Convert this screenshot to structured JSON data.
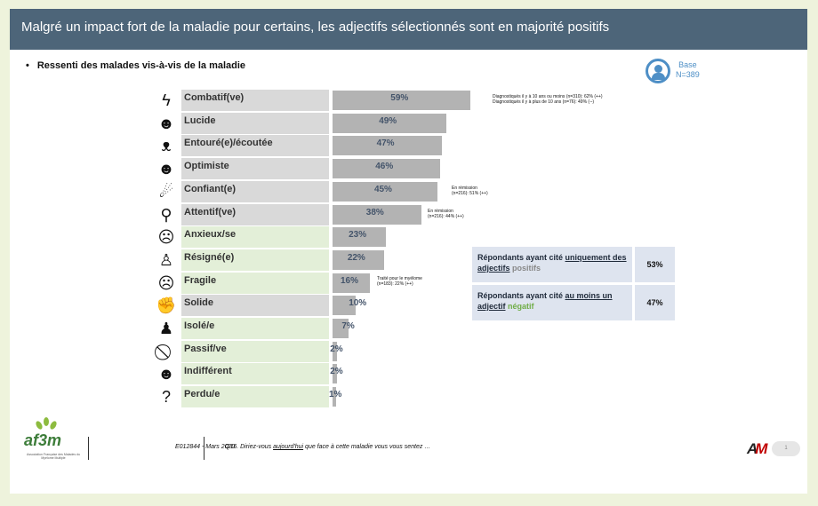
{
  "header": {
    "title": "Malgré un impact fort de la maladie pour certains, les adjectifs sélectionnés sont en majorité positifs"
  },
  "bullet": {
    "marker": "•",
    "text": "Ressenti des malades vis-à-vis de la maladie"
  },
  "base": {
    "line1": "Base",
    "line2": "N=389",
    "icon": "group-icon"
  },
  "colors": {
    "header_bg": "#4d6579",
    "bar": "#b3b3b3",
    "label_positive": "#d9d9d9",
    "label_negative": "#e3efd8",
    "pct_text": "#44546a",
    "summary_bg": "#dee4ef",
    "negative_word": "#70ad47"
  },
  "adjectives": [
    {
      "label": "Combatif(ve)",
      "pct": 59,
      "pct_text": "59%",
      "tone": "positive",
      "icon": "lightning-icon",
      "glyph": "ϟ"
    },
    {
      "label": "Lucide",
      "pct": 49,
      "pct_text": "49%",
      "tone": "positive",
      "icon": "head-gears-icon",
      "glyph": "☻"
    },
    {
      "label": "Entouré(e)/écoutée",
      "pct": 47,
      "pct_text": "47%",
      "tone": "positive",
      "icon": "people-group-icon",
      "glyph": "ᴥ"
    },
    {
      "label": "Optimiste",
      "pct": 46,
      "pct_text": "46%",
      "tone": "positive",
      "icon": "smiley-icon",
      "glyph": "☻"
    },
    {
      "label": "Confiant(e)",
      "pct": 45,
      "pct_text": "45%",
      "tone": "positive",
      "icon": "shooting-star-icon",
      "glyph": "☄"
    },
    {
      "label": "Attentif(ve)",
      "pct": 38,
      "pct_text": "38%",
      "tone": "positive",
      "icon": "magnifier-pulse-icon",
      "glyph": "⚲"
    },
    {
      "label": "Anxieux/se",
      "pct": 23,
      "pct_text": "23%",
      "tone": "negative",
      "icon": "worried-face-icon",
      "glyph": "☹"
    },
    {
      "label": "Résigné(e)",
      "pct": 22,
      "pct_text": "22%",
      "tone": "negative",
      "icon": "standing-person-icon",
      "glyph": "♙"
    },
    {
      "label": "Fragile",
      "pct": 16,
      "pct_text": "16%",
      "tone": "negative",
      "icon": "sad-face-icon",
      "glyph": "☹"
    },
    {
      "label": "Solide",
      "pct": 10,
      "pct_text": "10%",
      "tone": "positive",
      "icon": "flexed-arm-icon",
      "glyph": "✊"
    },
    {
      "label": "Isolé/e",
      "pct": 7,
      "pct_text": "7%",
      "tone": "negative",
      "icon": "lonely-person-icon",
      "glyph": "♟"
    },
    {
      "label": "Passif/ve",
      "pct": 2,
      "pct_text": "2%",
      "tone": "negative",
      "icon": "no-sign-icon",
      "glyph": "⃠"
    },
    {
      "label": "Indifférent",
      "pct": 2,
      "pct_text": "2%",
      "tone": "negative",
      "icon": "neutral-face-icon",
      "glyph": "☻"
    },
    {
      "label": "Perdu/e",
      "pct": 1,
      "pct_text": "1%",
      "tone": "negative",
      "icon": "question-mark-icon",
      "glyph": "?"
    }
  ],
  "notes": {
    "combatif_l1": "Diagnostiqués il y à 10 ans ou moins (n=310): 62% (++)",
    "combatif_l2": "Diagnostiqués il y à plus de 10 ans (n=76): 49% (--)",
    "confiant_l1": "En rémission",
    "confiant_l2": "(n=216): 51% (++)",
    "attentif_l1": "En rémission",
    "attentif_l2": "(n=216): 44% (++)",
    "fragile_l1": "Traité pour le myélome",
    "fragile_l2": "(n=183): 22% (++)"
  },
  "summary": [
    {
      "prefix": "Répondants ayant cité ",
      "underlined": "uniquement des adjectifs",
      "suffix": " positifs",
      "value": "53%"
    },
    {
      "prefix": "Répondants ayant cité ",
      "underlined": "au moins  un adjectif",
      "suffix": " négatif",
      "value": "47%"
    }
  ],
  "footer": {
    "logo_text": "af3m",
    "logo_sub": "Association Française des Malades du Myélome Multiple",
    "ref": "E012844 - Mars 2020",
    "question_prefix": "Q16. Diriez-vous ",
    "question_underlined": "aujourd'hui",
    "question_suffix": " que face à cette maladie vous vous sentez …",
    "brand_a": "A",
    "brand_m": "M",
    "page": "1"
  }
}
